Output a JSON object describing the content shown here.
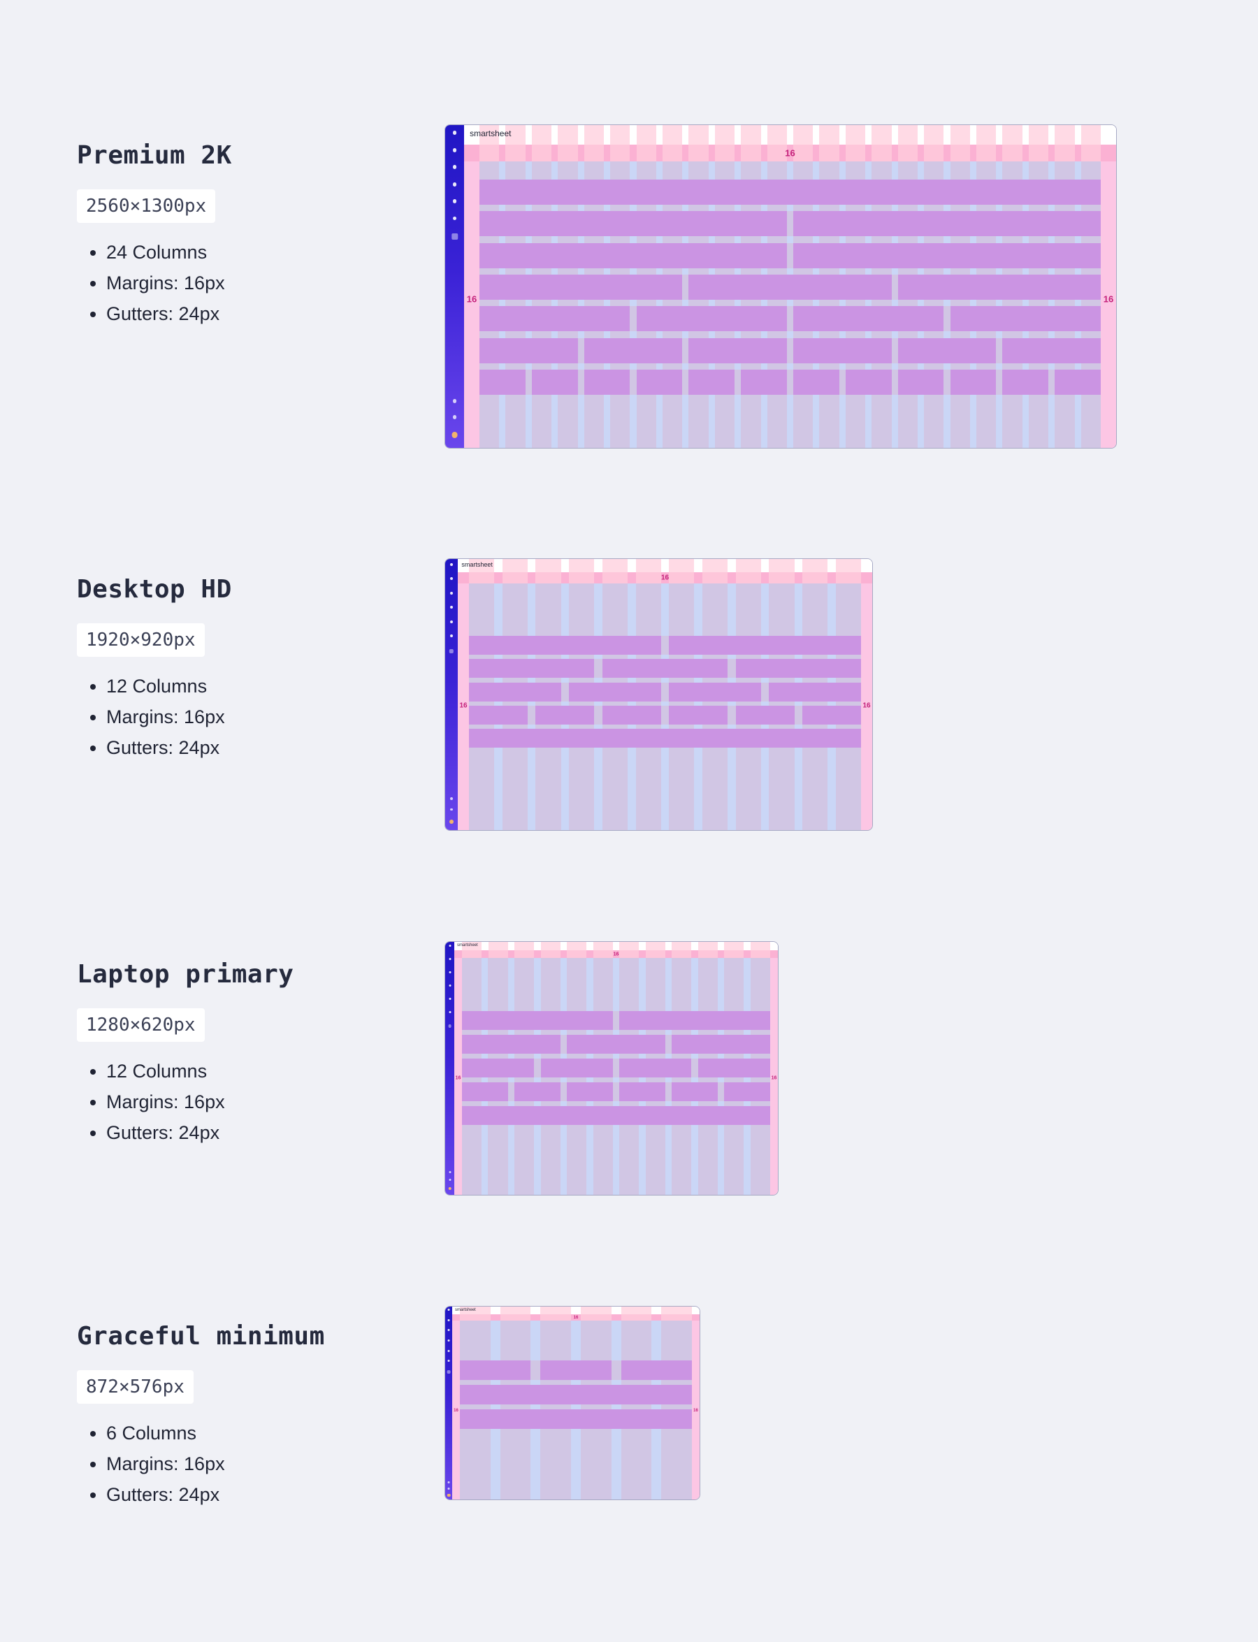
{
  "sections": [
    {
      "title": "Premium 2K",
      "dimensions": "2560×1300px",
      "specs": [
        "24 Columns",
        "Margins: 16px",
        "Gutters: 24px"
      ],
      "brand": "smartsheet",
      "margin_label_top": "16",
      "margin_label_left": "16",
      "margin_label_right": "16",
      "columns": 24,
      "rows": 7
    },
    {
      "title": "Desktop HD",
      "dimensions": "1920×920px",
      "specs": [
        "12 Columns",
        "Margins: 16px",
        "Gutters: 24px"
      ],
      "brand": "smartsheet",
      "margin_label_top": "16",
      "margin_label_left": "16",
      "margin_label_right": "16",
      "columns": 12,
      "rows": 5
    },
    {
      "title": "Laptop primary",
      "dimensions": "1280×620px",
      "specs": [
        "12 Columns",
        "Margins: 16px",
        "Gutters: 24px"
      ],
      "brand": "smartsheet",
      "margin_label_top": "16",
      "margin_label_left": "16",
      "margin_label_right": "16",
      "columns": 12,
      "rows": 5
    },
    {
      "title": "Graceful minimum",
      "dimensions": "872×576px",
      "specs": [
        "6 Columns",
        "Margins: 16px",
        "Gutters: 24px"
      ],
      "brand": "smartsheet",
      "margin_label_top": "16",
      "margin_label_left": "16",
      "margin_label_right": "16",
      "columns": 6,
      "rows": 3
    }
  ],
  "colors": {
    "background": "#f0f1f6",
    "rail": "#2016c4",
    "margin": "#fcc6e4",
    "column": "#d1c6e4",
    "gutter": "#cad6f6",
    "row_block": "#cb94e3",
    "label": "#c4207a"
  }
}
